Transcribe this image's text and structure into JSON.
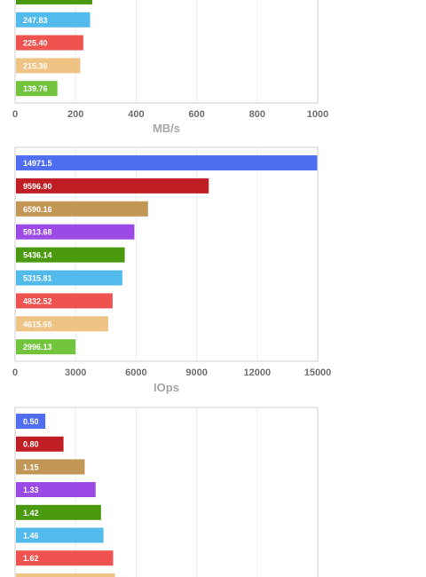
{
  "chart_data": [
    {
      "type": "bar",
      "orientation": "horizontal",
      "xlabel": "MB/s",
      "xlim": [
        0,
        1000
      ],
      "xticks": [
        "0",
        "200",
        "400",
        "600",
        "800",
        "1000"
      ],
      "grid": true,
      "bars": [
        {
          "value": 255.0,
          "label": "",
          "color": "#4a990f"
        },
        {
          "value": 247.83,
          "label": "247.83",
          "color": "#52bbec"
        },
        {
          "value": 225.4,
          "label": "225.40",
          "color": "#ef5350"
        },
        {
          "value": 215.36,
          "label": "215.36",
          "color": "#efc384"
        },
        {
          "value": 139.76,
          "label": "139.76",
          "color": "#72c43d"
        }
      ]
    },
    {
      "type": "bar",
      "orientation": "horizontal",
      "xlabel": "IOps",
      "xlim": [
        0,
        15000
      ],
      "xticks": [
        "0",
        "3000",
        "6000",
        "9000",
        "12000",
        "15000"
      ],
      "grid": true,
      "bars": [
        {
          "value": 14971.5,
          "label": "14971.5",
          "color": "#4f6ef0"
        },
        {
          "value": 9596.9,
          "label": "9596.90",
          "color": "#bf1f24"
        },
        {
          "value": 6590.16,
          "label": "6590.16",
          "color": "#c29654"
        },
        {
          "value": 5913.68,
          "label": "5913.68",
          "color": "#9c4ae6"
        },
        {
          "value": 5436.14,
          "label": "5436.14",
          "color": "#4a990f"
        },
        {
          "value": 5315.81,
          "label": "5315.81",
          "color": "#52bbec"
        },
        {
          "value": 4832.52,
          "label": "4832.52",
          "color": "#ef5350"
        },
        {
          "value": 4615.65,
          "label": "4615.65",
          "color": "#efc384"
        },
        {
          "value": 2996.13,
          "label": "2996.13",
          "color": "#72c43d"
        }
      ]
    },
    {
      "type": "bar",
      "orientation": "horizontal",
      "xlabel": "",
      "xlim": [
        0,
        5
      ],
      "xticks": [],
      "grid": true,
      "bars": [
        {
          "value": 0.5,
          "label": "0.50",
          "color": "#4f6ef0"
        },
        {
          "value": 0.8,
          "label": "0.80",
          "color": "#bf1f24"
        },
        {
          "value": 1.15,
          "label": "1.15",
          "color": "#c29654"
        },
        {
          "value": 1.33,
          "label": "1.33",
          "color": "#9c4ae6"
        },
        {
          "value": 1.42,
          "label": "1.42",
          "color": "#4a990f"
        },
        {
          "value": 1.46,
          "label": "1.46",
          "color": "#52bbec"
        },
        {
          "value": 1.62,
          "label": "1.62",
          "color": "#ef5350"
        },
        {
          "value": 1.65,
          "label": "",
          "color": "#efc384"
        }
      ]
    }
  ]
}
